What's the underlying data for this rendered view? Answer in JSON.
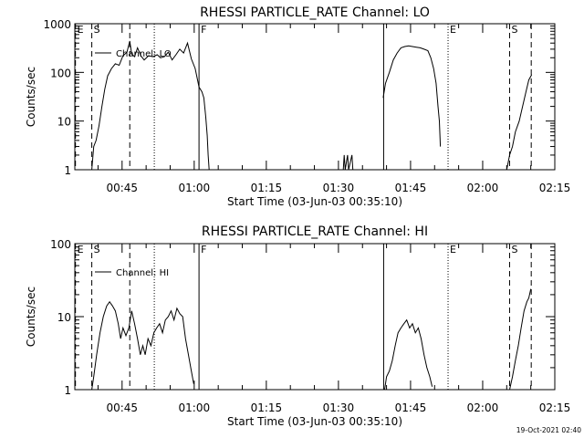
{
  "footer": {
    "timestamp": "19-Oct-2021 02:40"
  },
  "chart_data": [
    {
      "type": "line",
      "title": "RHESSI PARTICLE_RATE Channel: LO",
      "xlabel": "Start Time (03-Jun-03 00:35:10)",
      "ylabel": "Counts/sec",
      "yscale": "log",
      "ylim": [
        1,
        1000
      ],
      "xlim_minutes": [
        35.17,
        135.0
      ],
      "x_ticks": [
        {
          "min": 45,
          "label": "00:45"
        },
        {
          "min": 60,
          "label": "01:00"
        },
        {
          "min": 75,
          "label": "01:15"
        },
        {
          "min": 90,
          "label": "01:30"
        },
        {
          "min": 105,
          "label": "01:45"
        },
        {
          "min": 120,
          "label": "02:00"
        },
        {
          "min": 135,
          "label": "02:15"
        }
      ],
      "y_ticks": [
        {
          "v": 1,
          "label": "1"
        },
        {
          "v": 10,
          "label": "10"
        },
        {
          "v": 100,
          "label": "100"
        },
        {
          "v": 1000,
          "label": "1000"
        }
      ],
      "legend": "Channel: LO",
      "markers": [
        {
          "min": 35.3,
          "label": "E",
          "style": "dashed"
        },
        {
          "min": 38.7,
          "label": "S",
          "style": "dashed"
        },
        {
          "min": 46.6,
          "label": "",
          "style": "dashed"
        },
        {
          "min": 51.7,
          "label": "",
          "style": "dotted"
        },
        {
          "min": 61.0,
          "label": "F",
          "style": "solid"
        },
        {
          "min": 99.4,
          "label": "",
          "style": "solid"
        },
        {
          "min": 112.8,
          "label": "E",
          "style": "dotted"
        },
        {
          "min": 125.6,
          "label": "S",
          "style": "dashed"
        },
        {
          "min": 130.1,
          "label": "",
          "style": "dashed"
        }
      ],
      "series": [
        {
          "name": "LO segment 1",
          "points": [
            [
              38.7,
              1
            ],
            [
              39.1,
              3
            ],
            [
              39.6,
              4
            ],
            [
              40.2,
              8
            ],
            [
              40.8,
              20
            ],
            [
              41.4,
              45
            ],
            [
              42.0,
              85
            ],
            [
              42.8,
              120
            ],
            [
              43.6,
              150
            ],
            [
              44.4,
              140
            ],
            [
              45.2,
              220
            ],
            [
              46.0,
              260
            ],
            [
              46.6,
              440
            ],
            [
              47.0,
              240
            ],
            [
              47.6,
              210
            ],
            [
              48.2,
              320
            ],
            [
              48.9,
              220
            ],
            [
              49.6,
              180
            ],
            [
              50.5,
              220
            ],
            [
              51.4,
              210
            ],
            [
              52.3,
              230
            ],
            [
              53.0,
              200
            ],
            [
              53.8,
              210
            ],
            [
              54.6,
              260
            ],
            [
              55.4,
              180
            ],
            [
              56.2,
              230
            ],
            [
              57.0,
              300
            ],
            [
              57.8,
              250
            ],
            [
              58.6,
              400
            ],
            [
              59.4,
              190
            ],
            [
              60.2,
              120
            ],
            [
              61.0,
              50
            ],
            [
              61.6,
              40
            ],
            [
              62.0,
              30
            ],
            [
              62.4,
              12
            ],
            [
              62.7,
              5
            ],
            [
              62.9,
              2
            ],
            [
              63.1,
              1
            ]
          ]
        },
        {
          "name": "LO segment 2",
          "points": [
            [
              91.0,
              1
            ],
            [
              91.2,
              2
            ],
            [
              91.4,
              1
            ],
            [
              91.9,
              2
            ],
            [
              92.1,
              1
            ],
            [
              92.8,
              2
            ],
            [
              93.0,
              1
            ]
          ]
        },
        {
          "name": "LO segment 3",
          "points": [
            [
              99.3,
              30
            ],
            [
              99.8,
              60
            ],
            [
              100.6,
              100
            ],
            [
              101.4,
              180
            ],
            [
              102.2,
              250
            ],
            [
              103.0,
              320
            ],
            [
              103.8,
              340
            ],
            [
              104.6,
              350
            ],
            [
              105.4,
              340
            ],
            [
              106.2,
              330
            ],
            [
              107.0,
              320
            ],
            [
              107.8,
              300
            ],
            [
              108.6,
              280
            ],
            [
              109.2,
              200
            ],
            [
              109.8,
              120
            ],
            [
              110.3,
              60
            ],
            [
              110.7,
              20
            ],
            [
              111.0,
              10
            ],
            [
              111.2,
              3
            ]
          ]
        },
        {
          "name": "LO segment 4",
          "points": [
            [
              125.0,
              1
            ],
            [
              125.6,
              2
            ],
            [
              126.2,
              3
            ],
            [
              126.8,
              6
            ],
            [
              127.6,
              10
            ],
            [
              128.3,
              20
            ],
            [
              129.0,
              40
            ],
            [
              129.6,
              70
            ],
            [
              130.2,
              90
            ]
          ]
        }
      ]
    },
    {
      "type": "line",
      "title": "RHESSI PARTICLE_RATE Channel: HI",
      "xlabel": "Start Time (03-Jun-03 00:35:10)",
      "ylabel": "Counts/sec",
      "yscale": "log",
      "ylim": [
        1,
        100
      ],
      "xlim_minutes": [
        35.17,
        135.0
      ],
      "x_ticks": [
        {
          "min": 45,
          "label": "00:45"
        },
        {
          "min": 60,
          "label": "01:00"
        },
        {
          "min": 75,
          "label": "01:15"
        },
        {
          "min": 90,
          "label": "01:30"
        },
        {
          "min": 105,
          "label": "01:45"
        },
        {
          "min": 120,
          "label": "02:00"
        },
        {
          "min": 135,
          "label": "02:15"
        }
      ],
      "y_ticks": [
        {
          "v": 1,
          "label": "1"
        },
        {
          "v": 10,
          "label": "10"
        },
        {
          "v": 100,
          "label": "100"
        }
      ],
      "legend": "Channel: HI",
      "markers": [
        {
          "min": 35.3,
          "label": "E",
          "style": "dashed"
        },
        {
          "min": 38.7,
          "label": "S",
          "style": "dashed"
        },
        {
          "min": 46.6,
          "label": "",
          "style": "dashed"
        },
        {
          "min": 51.7,
          "label": "",
          "style": "dotted"
        },
        {
          "min": 61.0,
          "label": "F",
          "style": "solid"
        },
        {
          "min": 99.4,
          "label": "",
          "style": "solid"
        },
        {
          "min": 112.8,
          "label": "E",
          "style": "dotted"
        },
        {
          "min": 125.6,
          "label": "S",
          "style": "dashed"
        },
        {
          "min": 130.1,
          "label": "",
          "style": "dashed"
        }
      ],
      "series": [
        {
          "name": "HI segment 1",
          "points": [
            [
              38.7,
              1
            ],
            [
              39.1,
              1.5
            ],
            [
              39.7,
              3
            ],
            [
              40.4,
              6
            ],
            [
              41.1,
              10
            ],
            [
              41.8,
              14
            ],
            [
              42.4,
              16
            ],
            [
              43.0,
              14
            ],
            [
              43.6,
              12
            ],
            [
              44.2,
              8
            ],
            [
              44.7,
              5
            ],
            [
              45.2,
              7
            ],
            [
              45.8,
              5.5
            ],
            [
              46.4,
              7
            ],
            [
              47.0,
              12
            ],
            [
              47.6,
              8
            ],
            [
              48.2,
              5
            ],
            [
              48.8,
              3
            ],
            [
              49.3,
              4
            ],
            [
              49.8,
              3
            ],
            [
              50.4,
              5
            ],
            [
              51.0,
              4
            ],
            [
              51.6,
              6
            ],
            [
              52.2,
              7
            ],
            [
              52.8,
              8
            ],
            [
              53.4,
              6
            ],
            [
              54.0,
              9
            ],
            [
              54.6,
              10
            ],
            [
              55.2,
              12
            ],
            [
              55.8,
              9
            ],
            [
              56.4,
              13
            ],
            [
              57.0,
              11
            ],
            [
              57.6,
              10
            ],
            [
              58.2,
              5
            ],
            [
              58.8,
              3
            ],
            [
              59.4,
              1.8
            ],
            [
              59.9,
              1.2
            ]
          ]
        },
        {
          "name": "HI segment 2",
          "points": [
            [
              99.6,
              1
            ],
            [
              100.0,
              1.5
            ],
            [
              100.6,
              1.8
            ],
            [
              101.2,
              2.5
            ],
            [
              101.8,
              4
            ],
            [
              102.4,
              6
            ],
            [
              103.0,
              7
            ],
            [
              103.6,
              8
            ],
            [
              104.2,
              9
            ],
            [
              104.8,
              7
            ],
            [
              105.4,
              8
            ],
            [
              106.0,
              6
            ],
            [
              106.6,
              7
            ],
            [
              107.2,
              5
            ],
            [
              107.8,
              3
            ],
            [
              108.4,
              2
            ],
            [
              109.0,
              1.5
            ],
            [
              109.5,
              1.1
            ]
          ]
        },
        {
          "name": "HI segment 3",
          "points": [
            [
              125.6,
              1
            ],
            [
              126.2,
              1.5
            ],
            [
              126.8,
              2.5
            ],
            [
              127.4,
              4
            ],
            [
              128.0,
              7
            ],
            [
              128.6,
              12
            ],
            [
              129.2,
              16
            ],
            [
              129.6,
              18
            ],
            [
              130.0,
              24
            ]
          ]
        }
      ]
    }
  ]
}
